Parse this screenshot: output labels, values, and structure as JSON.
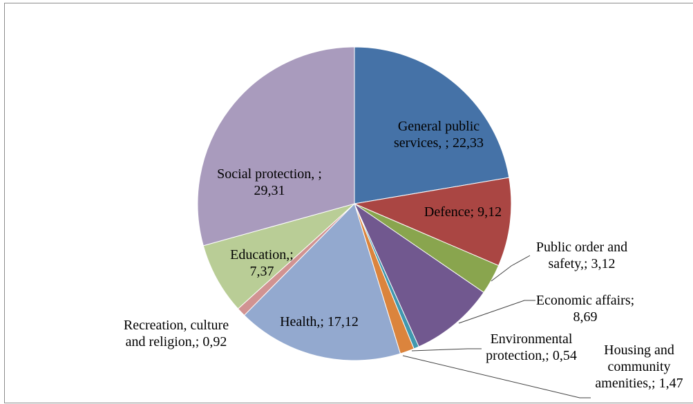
{
  "chart_data": {
    "type": "pie",
    "title": "",
    "start_angle_deg": 0,
    "direction": "clockwise",
    "slices": [
      {
        "label_lines": [
          "General public",
          "services, ; 22,33"
        ],
        "value": 22.33,
        "color": "#4572a7"
      },
      {
        "label_lines": [
          "Defence; 9,12"
        ],
        "value": 9.12,
        "color": "#aa4643"
      },
      {
        "label_lines": [
          "Public order and",
          "safety,; 3,12"
        ],
        "value": 3.12,
        "color": "#89a54e"
      },
      {
        "label_lines": [
          "Economic affairs;",
          "8,69"
        ],
        "value": 8.69,
        "color": "#71588f"
      },
      {
        "label_lines": [
          "Environmental",
          "protection,; 0,54"
        ],
        "value": 0.54,
        "color": "#4198af"
      },
      {
        "label_lines": [
          "Housing and",
          "community",
          "amenities,; 1,47"
        ],
        "value": 1.47,
        "color": "#db843d"
      },
      {
        "label_lines": [
          "Health,; 17,12"
        ],
        "value": 17.12,
        "color": "#93a9cf"
      },
      {
        "label_lines": [
          "Recreation, culture",
          "and religion,; 0,92"
        ],
        "value": 0.92,
        "color": "#d19392"
      },
      {
        "label_lines": [
          "Education,;",
          "7,37"
        ],
        "value": 7.37,
        "color": "#b9cd96"
      },
      {
        "label_lines": [
          "Social protection, ;",
          "29,31"
        ],
        "value": 29.31,
        "color": "#a99bbd"
      }
    ]
  }
}
